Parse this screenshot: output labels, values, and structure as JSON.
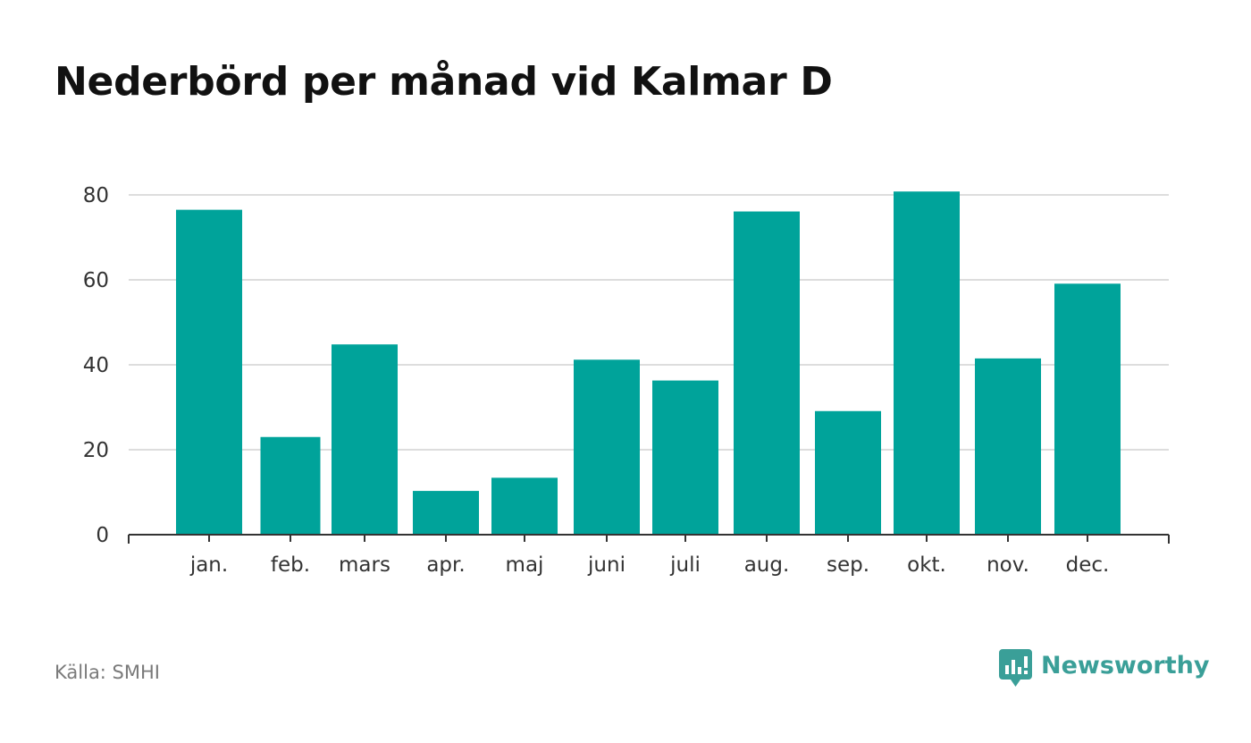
{
  "title": "Nederbörd per månad vid Kalmar D",
  "source": "Källa: SMHI",
  "brand": {
    "name": "Newsworthy",
    "icon": "newsworthy-logo-icon",
    "color": "#3a9f98"
  },
  "colors": {
    "bar": "#00a39a",
    "grid": "#dddddd",
    "axis": "#333333"
  },
  "chart_data": {
    "type": "bar",
    "title": "Nederbörd per månad vid Kalmar D",
    "xlabel": "",
    "ylabel": "",
    "categories": [
      "jan.",
      "feb.",
      "mars",
      "apr.",
      "maj",
      "juni",
      "juli",
      "aug.",
      "sep.",
      "okt.",
      "nov.",
      "dec."
    ],
    "values": [
      76.5,
      23.0,
      44.8,
      10.3,
      13.4,
      41.2,
      36.3,
      76.1,
      29.1,
      80.8,
      41.5,
      59.1
    ],
    "ylim": [
      0,
      80
    ],
    "yticks": [
      0,
      20,
      40,
      60,
      80
    ],
    "grid": true,
    "legend": "none"
  }
}
